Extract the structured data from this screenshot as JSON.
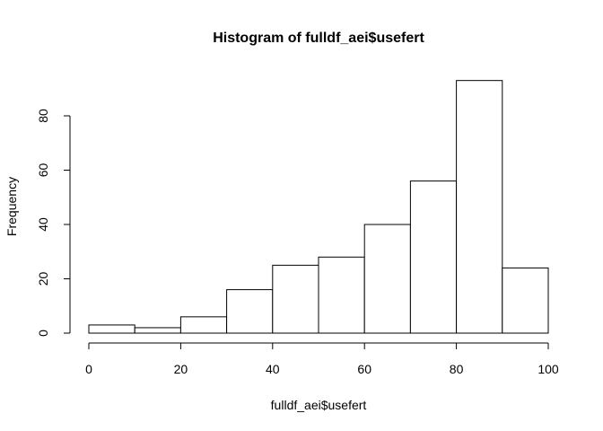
{
  "chart_data": {
    "type": "bar",
    "title": "Histogram of fulldf_aei$usefert",
    "xlabel": "fulldf_aei$usefert",
    "ylabel": "Frequency",
    "bins": [
      [
        0,
        10
      ],
      [
        10,
        20
      ],
      [
        20,
        30
      ],
      [
        30,
        40
      ],
      [
        40,
        50
      ],
      [
        50,
        60
      ],
      [
        60,
        70
      ],
      [
        70,
        80
      ],
      [
        80,
        90
      ],
      [
        90,
        100
      ]
    ],
    "values": [
      3,
      2,
      6,
      16,
      25,
      28,
      40,
      56,
      93,
      24
    ],
    "xlim": [
      0,
      100
    ],
    "ylim": [
      0,
      93
    ],
    "x_ticks": [
      0,
      20,
      40,
      60,
      80,
      100
    ],
    "y_ticks": [
      0,
      20,
      40,
      60,
      80
    ],
    "grid": false,
    "bar_fill": "#ffffff",
    "bar_stroke": "#000000"
  }
}
